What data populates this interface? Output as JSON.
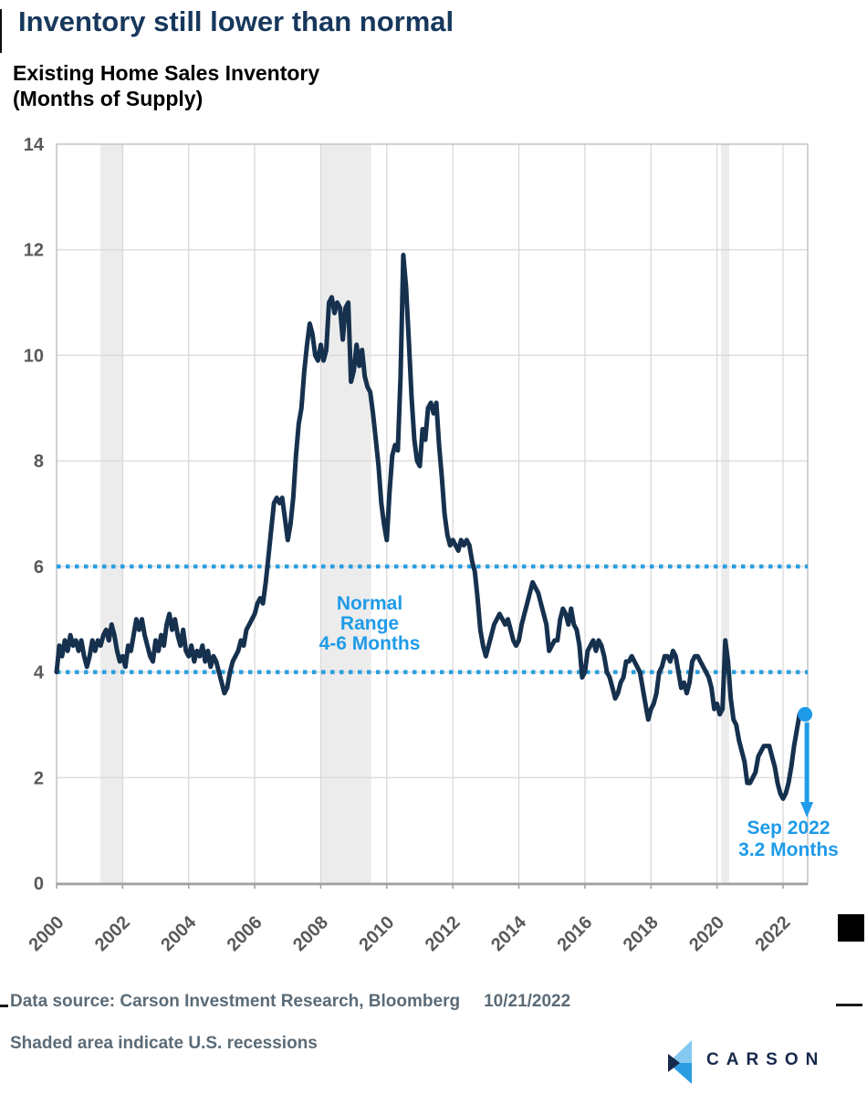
{
  "header": {
    "title": "Inventory still lower than normal",
    "subtitle_line1": "Existing Home Sales Inventory",
    "subtitle_line2": "(Months of Supply)"
  },
  "footer": {
    "source": "Data source: Carson Investment Research, Bloomberg",
    "date": "10/21/2022",
    "note": "Shaded area indicate U.S. recessions",
    "logo_text": "CARSON"
  },
  "colors": {
    "title_navy": "#17385C",
    "series_line": "#16314E",
    "accent_blue": "#1E9BE9",
    "dotted_blue": "#2B9FDE",
    "axis_label_gray": "#595959",
    "grid_gray": "#D9D9D9",
    "plot_border_gray": "#BBBBBB",
    "axis_line_gray": "#A0A0A0",
    "recession_gray": "#ECECEC",
    "footer_gray": "#5B6B77",
    "logo_navy": "#16294C",
    "logo_light_blue": "#85C8F0",
    "logo_blue": "#2B9CE0"
  },
  "chart_data": {
    "type": "line",
    "title": "Existing Home Sales Inventory (Months of Supply)",
    "frequency": "monthly",
    "x_start": "2000-01",
    "x_end": "2022-09",
    "ylim": [
      0,
      14
    ],
    "yticks": [
      0,
      2,
      4,
      6,
      8,
      10,
      12,
      14
    ],
    "xticks": [
      "2000",
      "2002",
      "2004",
      "2006",
      "2008",
      "2010",
      "2012",
      "2014",
      "2016",
      "2018",
      "2020",
      "2022"
    ],
    "grid": true,
    "values": [
      4.0,
      4.5,
      4.3,
      4.6,
      4.4,
      4.7,
      4.5,
      4.6,
      4.4,
      4.6,
      4.3,
      4.1,
      4.3,
      4.6,
      4.4,
      4.6,
      4.5,
      4.7,
      4.8,
      4.6,
      4.9,
      4.7,
      4.4,
      4.2,
      4.3,
      4.1,
      4.5,
      4.4,
      4.7,
      5.0,
      4.8,
      5.0,
      4.7,
      4.5,
      4.3,
      4.2,
      4.6,
      4.4,
      4.7,
      4.5,
      4.9,
      5.1,
      4.8,
      5.0,
      4.7,
      4.5,
      4.8,
      4.4,
      4.3,
      4.5,
      4.2,
      4.4,
      4.3,
      4.5,
      4.2,
      4.4,
      4.1,
      4.3,
      4.2,
      4.0,
      3.8,
      3.6,
      3.7,
      4.0,
      4.2,
      4.3,
      4.4,
      4.6,
      4.5,
      4.8,
      4.9,
      5.0,
      5.1,
      5.3,
      5.4,
      5.3,
      5.7,
      6.2,
      6.7,
      7.2,
      7.3,
      7.2,
      7.3,
      6.9,
      6.5,
      6.8,
      7.3,
      8.1,
      8.7,
      9.0,
      9.7,
      10.2,
      10.6,
      10.4,
      10.0,
      9.9,
      10.2,
      9.9,
      10.1,
      11.0,
      11.1,
      10.8,
      11.0,
      10.9,
      10.3,
      10.9,
      11.0,
      9.5,
      9.7,
      10.2,
      9.8,
      10.1,
      9.6,
      9.4,
      9.3,
      8.9,
      8.4,
      7.9,
      7.2,
      6.8,
      6.5,
      7.4,
      8.1,
      8.3,
      8.2,
      9.6,
      11.9,
      11.3,
      10.3,
      9.2,
      8.4,
      8.0,
      7.9,
      8.6,
      8.4,
      9.0,
      9.1,
      8.9,
      9.1,
      8.3,
      7.7,
      7.0,
      6.6,
      6.4,
      6.5,
      6.4,
      6.3,
      6.5,
      6.4,
      6.5,
      6.4,
      6.1,
      5.9,
      5.4,
      4.8,
      4.5,
      4.3,
      4.5,
      4.7,
      4.9,
      5.0,
      5.1,
      5.0,
      4.9,
      5.0,
      4.8,
      4.6,
      4.5,
      4.6,
      4.9,
      5.1,
      5.3,
      5.5,
      5.7,
      5.6,
      5.5,
      5.3,
      5.1,
      4.9,
      4.4,
      4.5,
      4.6,
      4.6,
      5.0,
      5.2,
      5.1,
      4.9,
      5.2,
      4.9,
      4.8,
      4.5,
      3.9,
      4.0,
      4.4,
      4.5,
      4.6,
      4.4,
      4.6,
      4.5,
      4.3,
      4.0,
      3.9,
      3.7,
      3.5,
      3.6,
      3.8,
      3.9,
      4.2,
      4.2,
      4.3,
      4.2,
      4.1,
      4.0,
      3.7,
      3.4,
      3.1,
      3.3,
      3.4,
      3.6,
      4.0,
      4.1,
      4.3,
      4.3,
      4.2,
      4.4,
      4.3,
      4.0,
      3.7,
      3.8,
      3.6,
      3.8,
      4.2,
      4.3,
      4.3,
      4.2,
      4.1,
      4.0,
      3.9,
      3.7,
      3.3,
      3.4,
      3.2,
      3.3,
      4.6,
      4.2,
      3.5,
      3.1,
      3.0,
      2.7,
      2.5,
      2.3,
      1.9,
      1.9,
      2.0,
      2.1,
      2.4,
      2.5,
      2.6,
      2.6,
      2.6,
      2.4,
      2.2,
      1.9,
      1.7,
      1.6,
      1.7,
      1.9,
      2.2,
      2.6,
      2.9,
      3.2,
      3.2,
      3.2
    ],
    "reference_lines": [
      {
        "value": 4,
        "style": "dotted"
      },
      {
        "value": 6,
        "style": "dotted"
      }
    ],
    "normal_range_label": [
      "Normal",
      "Range",
      "4-6 Months"
    ],
    "annotation": {
      "lines": [
        "Sep 2022",
        "3.2 Months"
      ],
      "point_x": 2022.667,
      "point_y": 3.2
    },
    "recessions": [
      [
        2001.33,
        2002.02
      ],
      [
        2008.01,
        2009.53
      ],
      [
        2020.12,
        2020.37
      ]
    ],
    "legend_position": "none"
  }
}
